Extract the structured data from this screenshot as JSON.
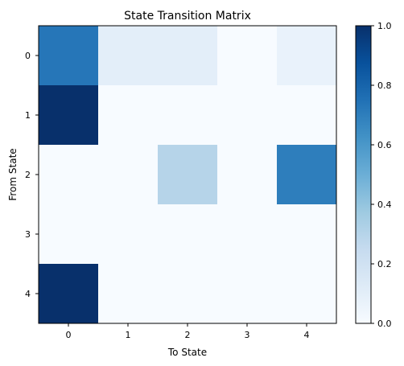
{
  "chart_data": {
    "type": "heatmap",
    "title": "State Transition Matrix",
    "xlabel": "To State",
    "ylabel": "From State",
    "x_categories": [
      "0",
      "1",
      "2",
      "3",
      "4"
    ],
    "y_categories": [
      "0",
      "1",
      "2",
      "3",
      "4"
    ],
    "values": [
      [
        0.73,
        0.1,
        0.1,
        0.0,
        0.07
      ],
      [
        1.0,
        0.0,
        0.0,
        0.0,
        0.0
      ],
      [
        0.0,
        0.0,
        0.3,
        0.0,
        0.7
      ],
      [
        0.0,
        0.0,
        0.0,
        0.0,
        0.0
      ],
      [
        1.0,
        0.0,
        0.0,
        0.0,
        0.0
      ]
    ],
    "colormap": "Blues",
    "colorbar": {
      "min": 0.0,
      "max": 1.0,
      "ticks": [
        "0.0",
        "0.2",
        "0.4",
        "0.6",
        "0.8",
        "1.0"
      ]
    },
    "grid": false
  }
}
